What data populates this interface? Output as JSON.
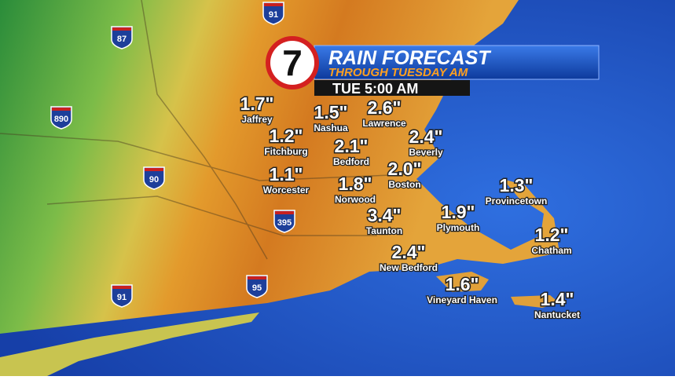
{
  "header": {
    "logo": "7",
    "title": "RAIN FORECAST",
    "subtitle": "THROUGH TUESDAY AM",
    "time": "TUE 5:00 AM"
  },
  "locations": [
    {
      "amount": "1.7\"",
      "name": "Jaffrey"
    },
    {
      "amount": "1.5\"",
      "name": "Nashua"
    },
    {
      "amount": "2.6\"",
      "name": "Lawrence"
    },
    {
      "amount": "1.2\"",
      "name": "Fitchburg"
    },
    {
      "amount": "2.1\"",
      "name": "Bedford"
    },
    {
      "amount": "2.4\"",
      "name": "Beverly"
    },
    {
      "amount": "1.1\"",
      "name": "Worcester"
    },
    {
      "amount": "2.0\"",
      "name": "Boston"
    },
    {
      "amount": "1.8\"",
      "name": "Norwood"
    },
    {
      "amount": "1.3\"",
      "name": "Provincetown"
    },
    {
      "amount": "3.4\"",
      "name": "Taunton"
    },
    {
      "amount": "1.9\"",
      "name": "Plymouth"
    },
    {
      "amount": "1.2\"",
      "name": "Chatham"
    },
    {
      "amount": "2.4\"",
      "name": "New Bedford"
    },
    {
      "amount": "1.6\"",
      "name": "Vineyard Haven"
    },
    {
      "amount": "1.4\"",
      "name": "Nantucket"
    }
  ],
  "highways": [
    "87",
    "91",
    "890",
    "90",
    "395",
    "95",
    "91"
  ]
}
